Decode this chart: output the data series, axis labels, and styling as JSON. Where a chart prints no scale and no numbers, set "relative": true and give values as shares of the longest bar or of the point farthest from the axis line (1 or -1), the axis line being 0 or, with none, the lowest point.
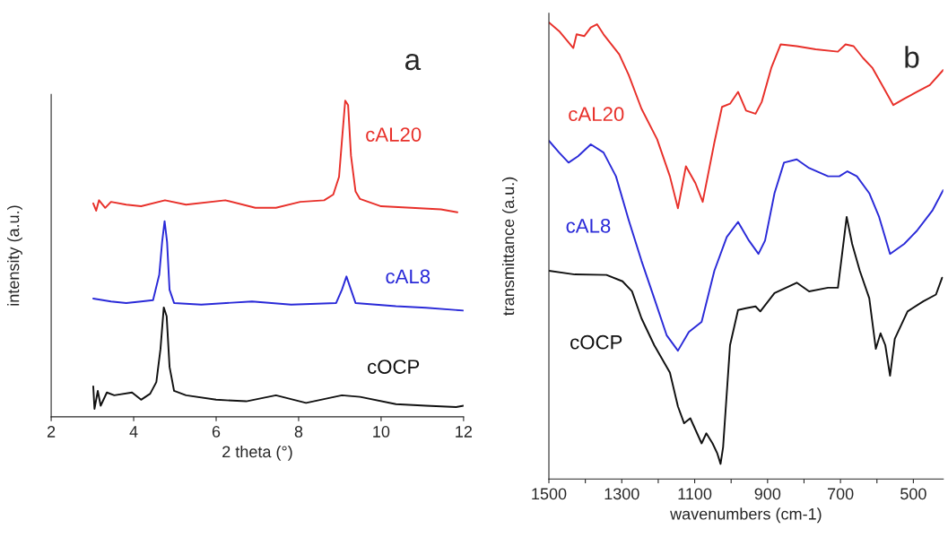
{
  "chart_data": [
    {
      "type": "line",
      "relative": true,
      "xlabel": "2 theta (°)",
      "ylabel": "intensity (a.u.)",
      "annotations": [
        "a"
      ],
      "xlim": [
        2,
        12
      ],
      "xticks": [
        2,
        4,
        6,
        8,
        10,
        12
      ],
      "grid": false,
      "legend": false,
      "series": [
        {
          "name": "cAL20",
          "color": "#e8302a",
          "x": [
            3.02,
            3.09,
            3.16,
            3.31,
            3.45,
            3.82,
            4.18,
            4.76,
            5.27,
            6.22,
            6.95,
            7.45,
            8.04,
            8.62,
            8.84,
            8.98,
            9.05,
            9.13,
            9.2,
            9.27,
            9.38,
            9.49,
            10.0,
            10.73,
            11.45,
            11.85
          ],
          "values": [
            0.675,
            0.652,
            0.685,
            0.661,
            0.68,
            0.671,
            0.666,
            0.685,
            0.671,
            0.685,
            0.661,
            0.661,
            0.68,
            0.685,
            0.703,
            0.759,
            0.873,
            1.0,
            0.986,
            0.826,
            0.713,
            0.689,
            0.666,
            0.661,
            0.656,
            0.647
          ]
        },
        {
          "name": "cAL8",
          "color": "#2a2ad8",
          "x": [
            3.02,
            3.45,
            3.82,
            4.18,
            4.47,
            4.62,
            4.69,
            4.75,
            4.81,
            4.87,
            4.98,
            5.64,
            6.87,
            7.82,
            8.91,
            9.05,
            9.16,
            9.27,
            9.38,
            10.36,
            11.09,
            12.0
          ],
          "values": [
            0.374,
            0.365,
            0.36,
            0.365,
            0.369,
            0.449,
            0.553,
            0.619,
            0.553,
            0.402,
            0.36,
            0.355,
            0.365,
            0.355,
            0.36,
            0.402,
            0.444,
            0.402,
            0.36,
            0.35,
            0.345,
            0.336
          ]
        },
        {
          "name": "cOCP",
          "color": "#111111",
          "x": [
            3.02,
            3.05,
            3.13,
            3.2,
            3.35,
            3.53,
            3.96,
            4.18,
            4.4,
            4.55,
            4.65,
            4.73,
            4.8,
            4.87,
            4.98,
            5.27,
            6.0,
            6.73,
            7.45,
            8.18,
            9.05,
            9.49,
            10.36,
            11.09,
            11.82,
            12.0
          ],
          "values": [
            0.096,
            0.025,
            0.082,
            0.035,
            0.077,
            0.068,
            0.077,
            0.054,
            0.073,
            0.11,
            0.214,
            0.346,
            0.318,
            0.158,
            0.082,
            0.068,
            0.054,
            0.049,
            0.068,
            0.044,
            0.068,
            0.063,
            0.04,
            0.035,
            0.031,
            0.035
          ]
        }
      ]
    },
    {
      "type": "line",
      "relative": true,
      "xlabel": "wavenumbers (cm-1)",
      "ylabel": "transmittance (a.u.)",
      "annotations": [
        "b"
      ],
      "xlim": [
        1500,
        418
      ],
      "xticks": [
        1500,
        {
          "value": 1400,
          "label": null
        },
        1300,
        {
          "value": 1200,
          "label": null
        },
        1100,
        {
          "value": 1000,
          "label": null
        },
        900,
        {
          "value": 800,
          "label": null
        },
        700,
        {
          "value": 600,
          "label": null
        },
        500
      ],
      "grid": false,
      "legend": false,
      "series": [
        {
          "name": "cAL20",
          "color": "#e8302a",
          "x": [
            1500,
            1472,
            1433,
            1424,
            1403,
            1385,
            1368,
            1350,
            1307,
            1281,
            1246,
            1203,
            1168,
            1146,
            1124,
            1098,
            1078,
            1046,
            1025,
            1003,
            981,
            959,
            933,
            916,
            890,
            864,
            820,
            768,
            707,
            686,
            664,
            638,
            612,
            586,
            555,
            525,
            490,
            455,
            418
          ],
          "values": [
            1.0,
            0.981,
            0.944,
            0.974,
            0.97,
            0.989,
            0.996,
            0.974,
            0.93,
            0.885,
            0.811,
            0.744,
            0.663,
            0.593,
            0.685,
            0.648,
            0.607,
            0.737,
            0.815,
            0.822,
            0.848,
            0.807,
            0.8,
            0.826,
            0.9,
            0.952,
            0.948,
            0.941,
            0.936,
            0.952,
            0.948,
            0.922,
            0.9,
            0.863,
            0.819,
            0.833,
            0.848,
            0.863,
            0.896
          ]
        },
        {
          "name": "cAL8",
          "color": "#2a2ad8",
          "x": [
            1500,
            1472,
            1446,
            1420,
            1385,
            1350,
            1316,
            1281,
            1246,
            1211,
            1177,
            1146,
            1116,
            1081,
            1046,
            1012,
            981,
            951,
            925,
            907,
            881,
            855,
            820,
            786,
            734,
            703,
            681,
            655,
            621,
            594,
            564,
            525,
            490,
            447,
            418
          ],
          "values": [
            0.741,
            0.715,
            0.693,
            0.707,
            0.733,
            0.715,
            0.663,
            0.567,
            0.478,
            0.396,
            0.315,
            0.281,
            0.322,
            0.344,
            0.456,
            0.53,
            0.563,
            0.522,
            0.493,
            0.522,
            0.626,
            0.693,
            0.7,
            0.681,
            0.663,
            0.663,
            0.674,
            0.663,
            0.626,
            0.574,
            0.493,
            0.515,
            0.544,
            0.589,
            0.633
          ]
        },
        {
          "name": "cOCP",
          "color": "#111111",
          "x": [
            1500,
            1429,
            1342,
            1298,
            1272,
            1246,
            1211,
            1168,
            1146,
            1129,
            1112,
            1081,
            1068,
            1051,
            1038,
            1029,
            1022,
            1003,
            981,
            959,
            933,
            920,
            881,
            820,
            786,
            734,
            707,
            683,
            668,
            647,
            621,
            603,
            590,
            577,
            564,
            551,
            516,
            473,
            438,
            421
          ],
          "values": [
            0.456,
            0.448,
            0.447,
            0.433,
            0.411,
            0.352,
            0.293,
            0.233,
            0.159,
            0.122,
            0.133,
            0.078,
            0.1,
            0.078,
            0.056,
            0.033,
            0.07,
            0.293,
            0.37,
            0.374,
            0.378,
            0.367,
            0.407,
            0.43,
            0.411,
            0.419,
            0.419,
            0.574,
            0.515,
            0.456,
            0.396,
            0.285,
            0.319,
            0.293,
            0.226,
            0.307,
            0.367,
            0.389,
            0.404,
            0.441
          ]
        }
      ]
    }
  ]
}
